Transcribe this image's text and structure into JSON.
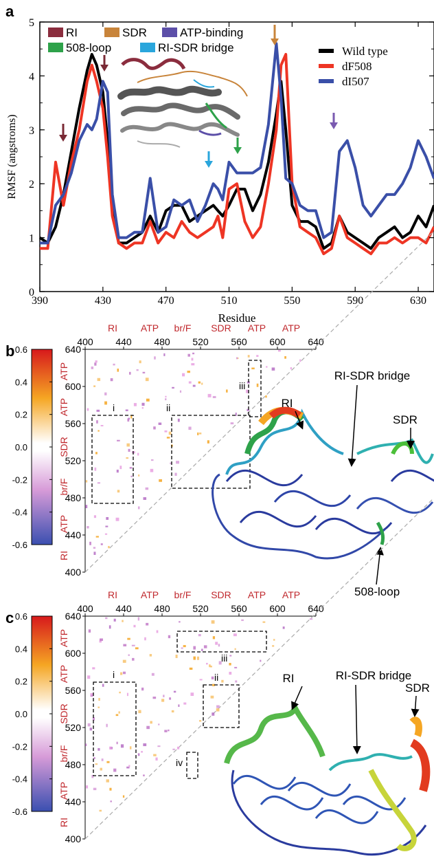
{
  "panel_labels": {
    "a": "a",
    "b": "b",
    "c": "c"
  },
  "chart_data": [
    {
      "type": "line",
      "panel": "a",
      "xlabel": "Residue",
      "ylabel": "RMSF (angstroms)",
      "xlim": [
        390,
        640
      ],
      "ylim": [
        0,
        5
      ],
      "xticks": [
        "390",
        "430",
        "470",
        "510",
        "550",
        "590",
        "630"
      ],
      "yticks": [
        "0",
        "1",
        "2",
        "3",
        "4",
        "5"
      ],
      "region_legend": [
        {
          "name": "RI",
          "color": "#8b2d3e"
        },
        {
          "name": "SDR",
          "color": "#c8843a"
        },
        {
          "name": "ATP-binding",
          "color": "#5c4fa8"
        },
        {
          "name": "508-loop",
          "color": "#2ea24a"
        },
        {
          "name": "RI-SDR bridge",
          "color": "#2aa6dc"
        }
      ],
      "series": [
        {
          "name": "Wild type",
          "color": "#000000",
          "x": [
            390,
            395,
            400,
            405,
            410,
            415,
            420,
            423,
            426,
            430,
            433,
            436,
            440,
            445,
            450,
            455,
            460,
            465,
            470,
            475,
            480,
            485,
            490,
            495,
            500,
            503,
            506,
            510,
            515,
            520,
            525,
            530,
            535,
            540,
            543,
            546,
            550,
            555,
            560,
            565,
            570,
            575,
            580,
            585,
            590,
            595,
            600,
            605,
            610,
            615,
            620,
            625,
            630,
            635,
            640
          ],
          "y": [
            1.0,
            0.9,
            1.2,
            1.8,
            2.6,
            3.4,
            4.1,
            4.4,
            4.2,
            3.7,
            2.8,
            1.6,
            0.9,
            0.9,
            1.0,
            1.1,
            1.4,
            1.1,
            1.5,
            1.6,
            1.6,
            1.3,
            1.4,
            1.5,
            1.6,
            1.5,
            1.4,
            1.6,
            1.9,
            1.9,
            1.5,
            1.8,
            2.4,
            3.3,
            3.9,
            3.0,
            1.6,
            1.3,
            1.3,
            1.2,
            0.8,
            0.9,
            1.4,
            1.1,
            1.0,
            0.9,
            0.8,
            1.0,
            1.1,
            1.2,
            1.0,
            1.1,
            1.4,
            1.2,
            1.6
          ]
        },
        {
          "name": "dF508",
          "color": "#ee3524",
          "x": [
            390,
            395,
            400,
            405,
            410,
            415,
            420,
            423,
            426,
            430,
            433,
            436,
            440,
            445,
            450,
            455,
            460,
            465,
            470,
            475,
            480,
            485,
            490,
            495,
            500,
            503,
            506,
            510,
            515,
            520,
            525,
            530,
            535,
            540,
            543,
            546,
            550,
            555,
            560,
            565,
            570,
            575,
            580,
            585,
            590,
            595,
            600,
            605,
            610,
            615,
            620,
            625,
            630,
            635,
            640
          ],
          "y": [
            0.8,
            0.8,
            2.4,
            1.6,
            2.4,
            3.0,
            3.9,
            4.2,
            3.9,
            3.4,
            2.5,
            1.4,
            0.9,
            0.8,
            0.9,
            0.9,
            1.3,
            0.9,
            1.1,
            1.0,
            1.3,
            1.1,
            1.0,
            1.1,
            1.2,
            1.4,
            1.0,
            1.9,
            2.0,
            1.3,
            1.0,
            1.2,
            2.0,
            3.0,
            4.2,
            4.4,
            2.0,
            1.2,
            1.1,
            1.0,
            0.7,
            0.8,
            1.4,
            1.0,
            0.9,
            0.8,
            0.7,
            0.9,
            0.9,
            1.0,
            0.9,
            1.0,
            1.0,
            0.9,
            1.2
          ]
        },
        {
          "name": "dI507",
          "color": "#3a4fa8",
          "x": [
            390,
            395,
            400,
            405,
            410,
            415,
            420,
            423,
            426,
            430,
            433,
            436,
            440,
            445,
            450,
            455,
            460,
            465,
            470,
            475,
            480,
            485,
            490,
            495,
            500,
            503,
            506,
            510,
            515,
            520,
            525,
            530,
            535,
            540,
            543,
            546,
            550,
            555,
            560,
            565,
            570,
            575,
            580,
            585,
            590,
            595,
            600,
            605,
            610,
            615,
            620,
            625,
            630,
            635,
            640
          ],
          "y": [
            0.9,
            0.9,
            1.6,
            1.8,
            2.2,
            2.8,
            3.1,
            3.0,
            3.2,
            3.9,
            3.7,
            1.8,
            1.0,
            1.0,
            1.1,
            1.1,
            2.1,
            1.1,
            1.2,
            1.7,
            1.6,
            1.7,
            1.3,
            1.6,
            2.0,
            1.9,
            1.7,
            2.4,
            2.2,
            2.2,
            2.2,
            2.3,
            3.1,
            4.6,
            3.6,
            2.1,
            2.0,
            1.6,
            1.5,
            1.5,
            1.0,
            1.1,
            2.6,
            2.8,
            2.3,
            1.6,
            1.4,
            1.6,
            1.8,
            1.8,
            2.0,
            2.3,
            2.8,
            2.5,
            2.1
          ]
        }
      ],
      "arrow_colors": [
        "#7a2a35",
        "#7a2a35",
        "#2aa6dc",
        "#2ea24a",
        "#c8843a",
        "#7a5ab0"
      ]
    },
    {
      "type": "heatmap",
      "panel": "b",
      "top_axis_ticks": [
        "400",
        "440",
        "480",
        "520",
        "560",
        "600",
        "640"
      ],
      "left_axis_ticks": [
        "640",
        "600",
        "560",
        "520",
        "480",
        "440",
        "400"
      ],
      "top_region_labels": [
        "RI",
        "ATP",
        "br/F",
        "SDR",
        "ATP",
        "ATP"
      ],
      "left_region_labels": [
        "ATP",
        "ATP",
        "SDR",
        "br/F",
        "ATP",
        "RI"
      ],
      "colorbar_ticks": [
        "0.6",
        "0.4",
        "0.2",
        "0.0",
        "-0.2",
        "-0.4",
        "-0.6"
      ],
      "boxes": [
        "i",
        "ii",
        "iii"
      ],
      "structure_labels": [
        "RI",
        "RI-SDR bridge",
        "SDR",
        "508-loop"
      ]
    },
    {
      "type": "heatmap",
      "panel": "c",
      "top_axis_ticks": [
        "400",
        "440",
        "480",
        "520",
        "560",
        "600",
        "640"
      ],
      "left_axis_ticks": [
        "640",
        "600",
        "560",
        "520",
        "480",
        "440",
        "400"
      ],
      "top_region_labels": [
        "RI",
        "ATP",
        "br/F",
        "SDR",
        "ATP",
        "ATP"
      ],
      "left_region_labels": [
        "ATP",
        "ATP",
        "SDR",
        "br/F",
        "ATP",
        "RI"
      ],
      "colorbar_ticks": [
        "0.6",
        "0.4",
        "0.2",
        "0.0",
        "-0.2",
        "-0.4",
        "-0.6"
      ],
      "boxes": [
        "i",
        "ii",
        "iii",
        "iv"
      ],
      "structure_labels": [
        "RI",
        "RI-SDR bridge",
        "SDR"
      ]
    }
  ]
}
